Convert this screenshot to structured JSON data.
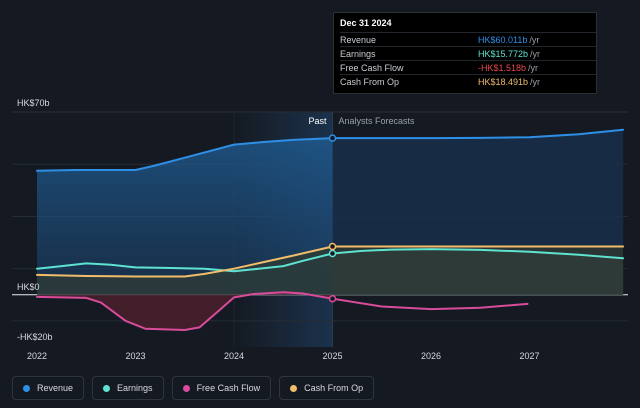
{
  "chart_data": {
    "type": "line",
    "y_axis": {
      "top_label": "HK$70b",
      "zero_label": "HK$0",
      "bottom_label": "-HK$20b",
      "ylim": [
        -20,
        70
      ]
    },
    "x_axis": {
      "ticks": [
        "2022",
        "2023",
        "2024",
        "2025",
        "2026",
        "2027"
      ],
      "xlim": [
        2022.0,
        2028.0
      ]
    },
    "divider": {
      "x": 2025.0,
      "past_label": "Past",
      "forecast_label": "Analysts Forecasts"
    },
    "series": [
      {
        "name": "Revenue",
        "color": "#2e8fe6",
        "points": [
          [
            2022.0,
            47.5
          ],
          [
            2022.4,
            47.8
          ],
          [
            2022.8,
            47.8
          ],
          [
            2023.0,
            47.8
          ],
          [
            2023.2,
            49.5
          ],
          [
            2023.5,
            52.5
          ],
          [
            2023.8,
            55.5
          ],
          [
            2024.0,
            57.5
          ],
          [
            2024.3,
            58.5
          ],
          [
            2024.6,
            59.3
          ],
          [
            2025.0,
            60.0
          ],
          [
            2025.5,
            60.0
          ],
          [
            2026.0,
            60.0
          ],
          [
            2026.5,
            60.1
          ],
          [
            2027.0,
            60.3
          ],
          [
            2027.5,
            61.5
          ],
          [
            2027.95,
            63.2
          ]
        ]
      },
      {
        "name": "Earnings",
        "color": "#5ee3d1",
        "points": [
          [
            2022.0,
            10.0
          ],
          [
            2022.25,
            11.0
          ],
          [
            2022.5,
            12.0
          ],
          [
            2022.75,
            11.5
          ],
          [
            2023.0,
            10.5
          ],
          [
            2023.3,
            10.3
          ],
          [
            2023.7,
            10.0
          ],
          [
            2024.0,
            9.0
          ],
          [
            2024.25,
            10.0
          ],
          [
            2024.5,
            11.0
          ],
          [
            2024.7,
            13.0
          ],
          [
            2025.0,
            15.8
          ],
          [
            2025.3,
            16.8
          ],
          [
            2025.6,
            17.3
          ],
          [
            2026.0,
            17.5
          ],
          [
            2026.5,
            17.2
          ],
          [
            2027.0,
            16.5
          ],
          [
            2027.5,
            15.3
          ],
          [
            2027.95,
            14.0
          ]
        ]
      },
      {
        "name": "Free Cash Flow",
        "color": "#d94c9b",
        "points": [
          [
            2022.0,
            -0.8
          ],
          [
            2022.5,
            -1.2
          ],
          [
            2022.65,
            -3.0
          ],
          [
            2022.9,
            -10.0
          ],
          [
            2023.1,
            -13.0
          ],
          [
            2023.5,
            -13.5
          ],
          [
            2023.65,
            -12.5
          ],
          [
            2023.85,
            -6.0
          ],
          [
            2024.0,
            -1.0
          ],
          [
            2024.2,
            0.3
          ],
          [
            2024.5,
            1.0
          ],
          [
            2024.7,
            0.5
          ],
          [
            2025.0,
            -1.5
          ],
          [
            2025.5,
            -4.5
          ],
          [
            2026.0,
            -5.5
          ],
          [
            2026.5,
            -5.0
          ],
          [
            2026.98,
            -3.5
          ]
        ]
      },
      {
        "name": "Cash From Op",
        "color": "#f2bd6b",
        "points": [
          [
            2022.0,
            7.6
          ],
          [
            2022.5,
            7.2
          ],
          [
            2023.0,
            7.0
          ],
          [
            2023.5,
            7.0
          ],
          [
            2023.7,
            8.0
          ],
          [
            2024.0,
            10.0
          ],
          [
            2024.3,
            12.5
          ],
          [
            2024.6,
            15.0
          ],
          [
            2025.0,
            18.5
          ],
          [
            2025.5,
            18.5
          ],
          [
            2026.0,
            18.5
          ],
          [
            2026.5,
            18.5
          ],
          [
            2027.0,
            18.5
          ],
          [
            2027.5,
            18.5
          ],
          [
            2027.95,
            18.5
          ]
        ]
      }
    ],
    "tooltip": {
      "date": "Dec 31 2024",
      "rows": [
        {
          "name": "Revenue",
          "value": "HK$60.011b",
          "unit": "/yr",
          "color": "#2e8fe6"
        },
        {
          "name": "Earnings",
          "value": "HK$15.772b",
          "unit": "/yr",
          "color": "#5ee3d1"
        },
        {
          "name": "Free Cash Flow",
          "value": "-HK$1.518b",
          "unit": "/yr",
          "color": "#e5484d"
        },
        {
          "name": "Cash From Op",
          "value": "HK$18.491b",
          "unit": "/yr",
          "color": "#f2bd6b"
        }
      ]
    }
  },
  "legend": [
    {
      "label": "Revenue",
      "color": "#2e8fe6"
    },
    {
      "label": "Earnings",
      "color": "#5ee3d1"
    },
    {
      "label": "Free Cash Flow",
      "color": "#d94c9b"
    },
    {
      "label": "Cash From Op",
      "color": "#f2bd6b"
    }
  ]
}
